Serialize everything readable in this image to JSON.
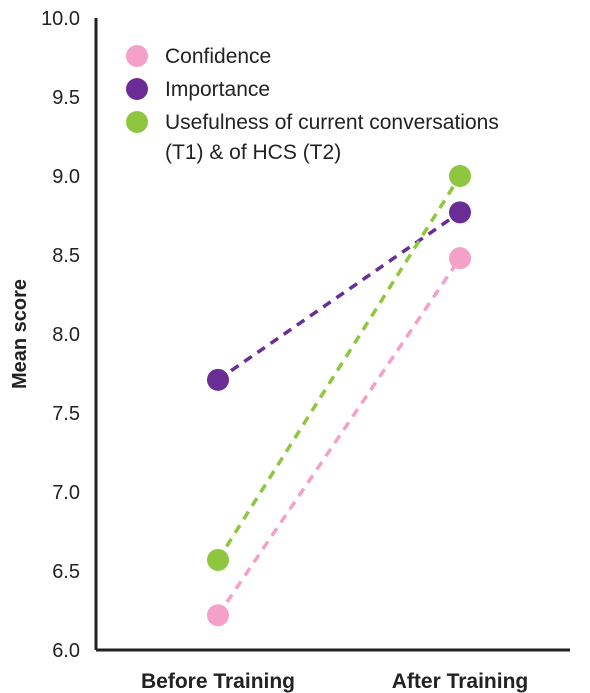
{
  "chart_data": {
    "type": "line",
    "categories": [
      "Before Training",
      "After Training"
    ],
    "ylabel": "Mean score",
    "xlabel": "",
    "ylim": [
      6.0,
      10.0
    ],
    "yticks": [
      "6.0",
      "6.5",
      "7.0",
      "7.5",
      "8.0",
      "8.5",
      "9.0",
      "9.5",
      "10.0"
    ],
    "grid": false,
    "legend_position": "top-left",
    "line_style": "dashed",
    "series": [
      {
        "name": "Confidence",
        "color": "#f4a0c8",
        "values": [
          6.22,
          8.48
        ]
      },
      {
        "name": "Importance",
        "color": "#6a2d95",
        "values": [
          7.71,
          8.77
        ]
      },
      {
        "name": "Usefulness of current conversations (T1) & of HCS (T2)",
        "color": "#8ec63f",
        "values": [
          6.57,
          9.0
        ]
      }
    ],
    "legend": [
      {
        "lines": [
          "Confidence"
        ]
      },
      {
        "lines": [
          "Importance"
        ]
      },
      {
        "lines": [
          "Usefulness of current conversations",
          "(T1) & of HCS (T2)"
        ]
      }
    ]
  }
}
